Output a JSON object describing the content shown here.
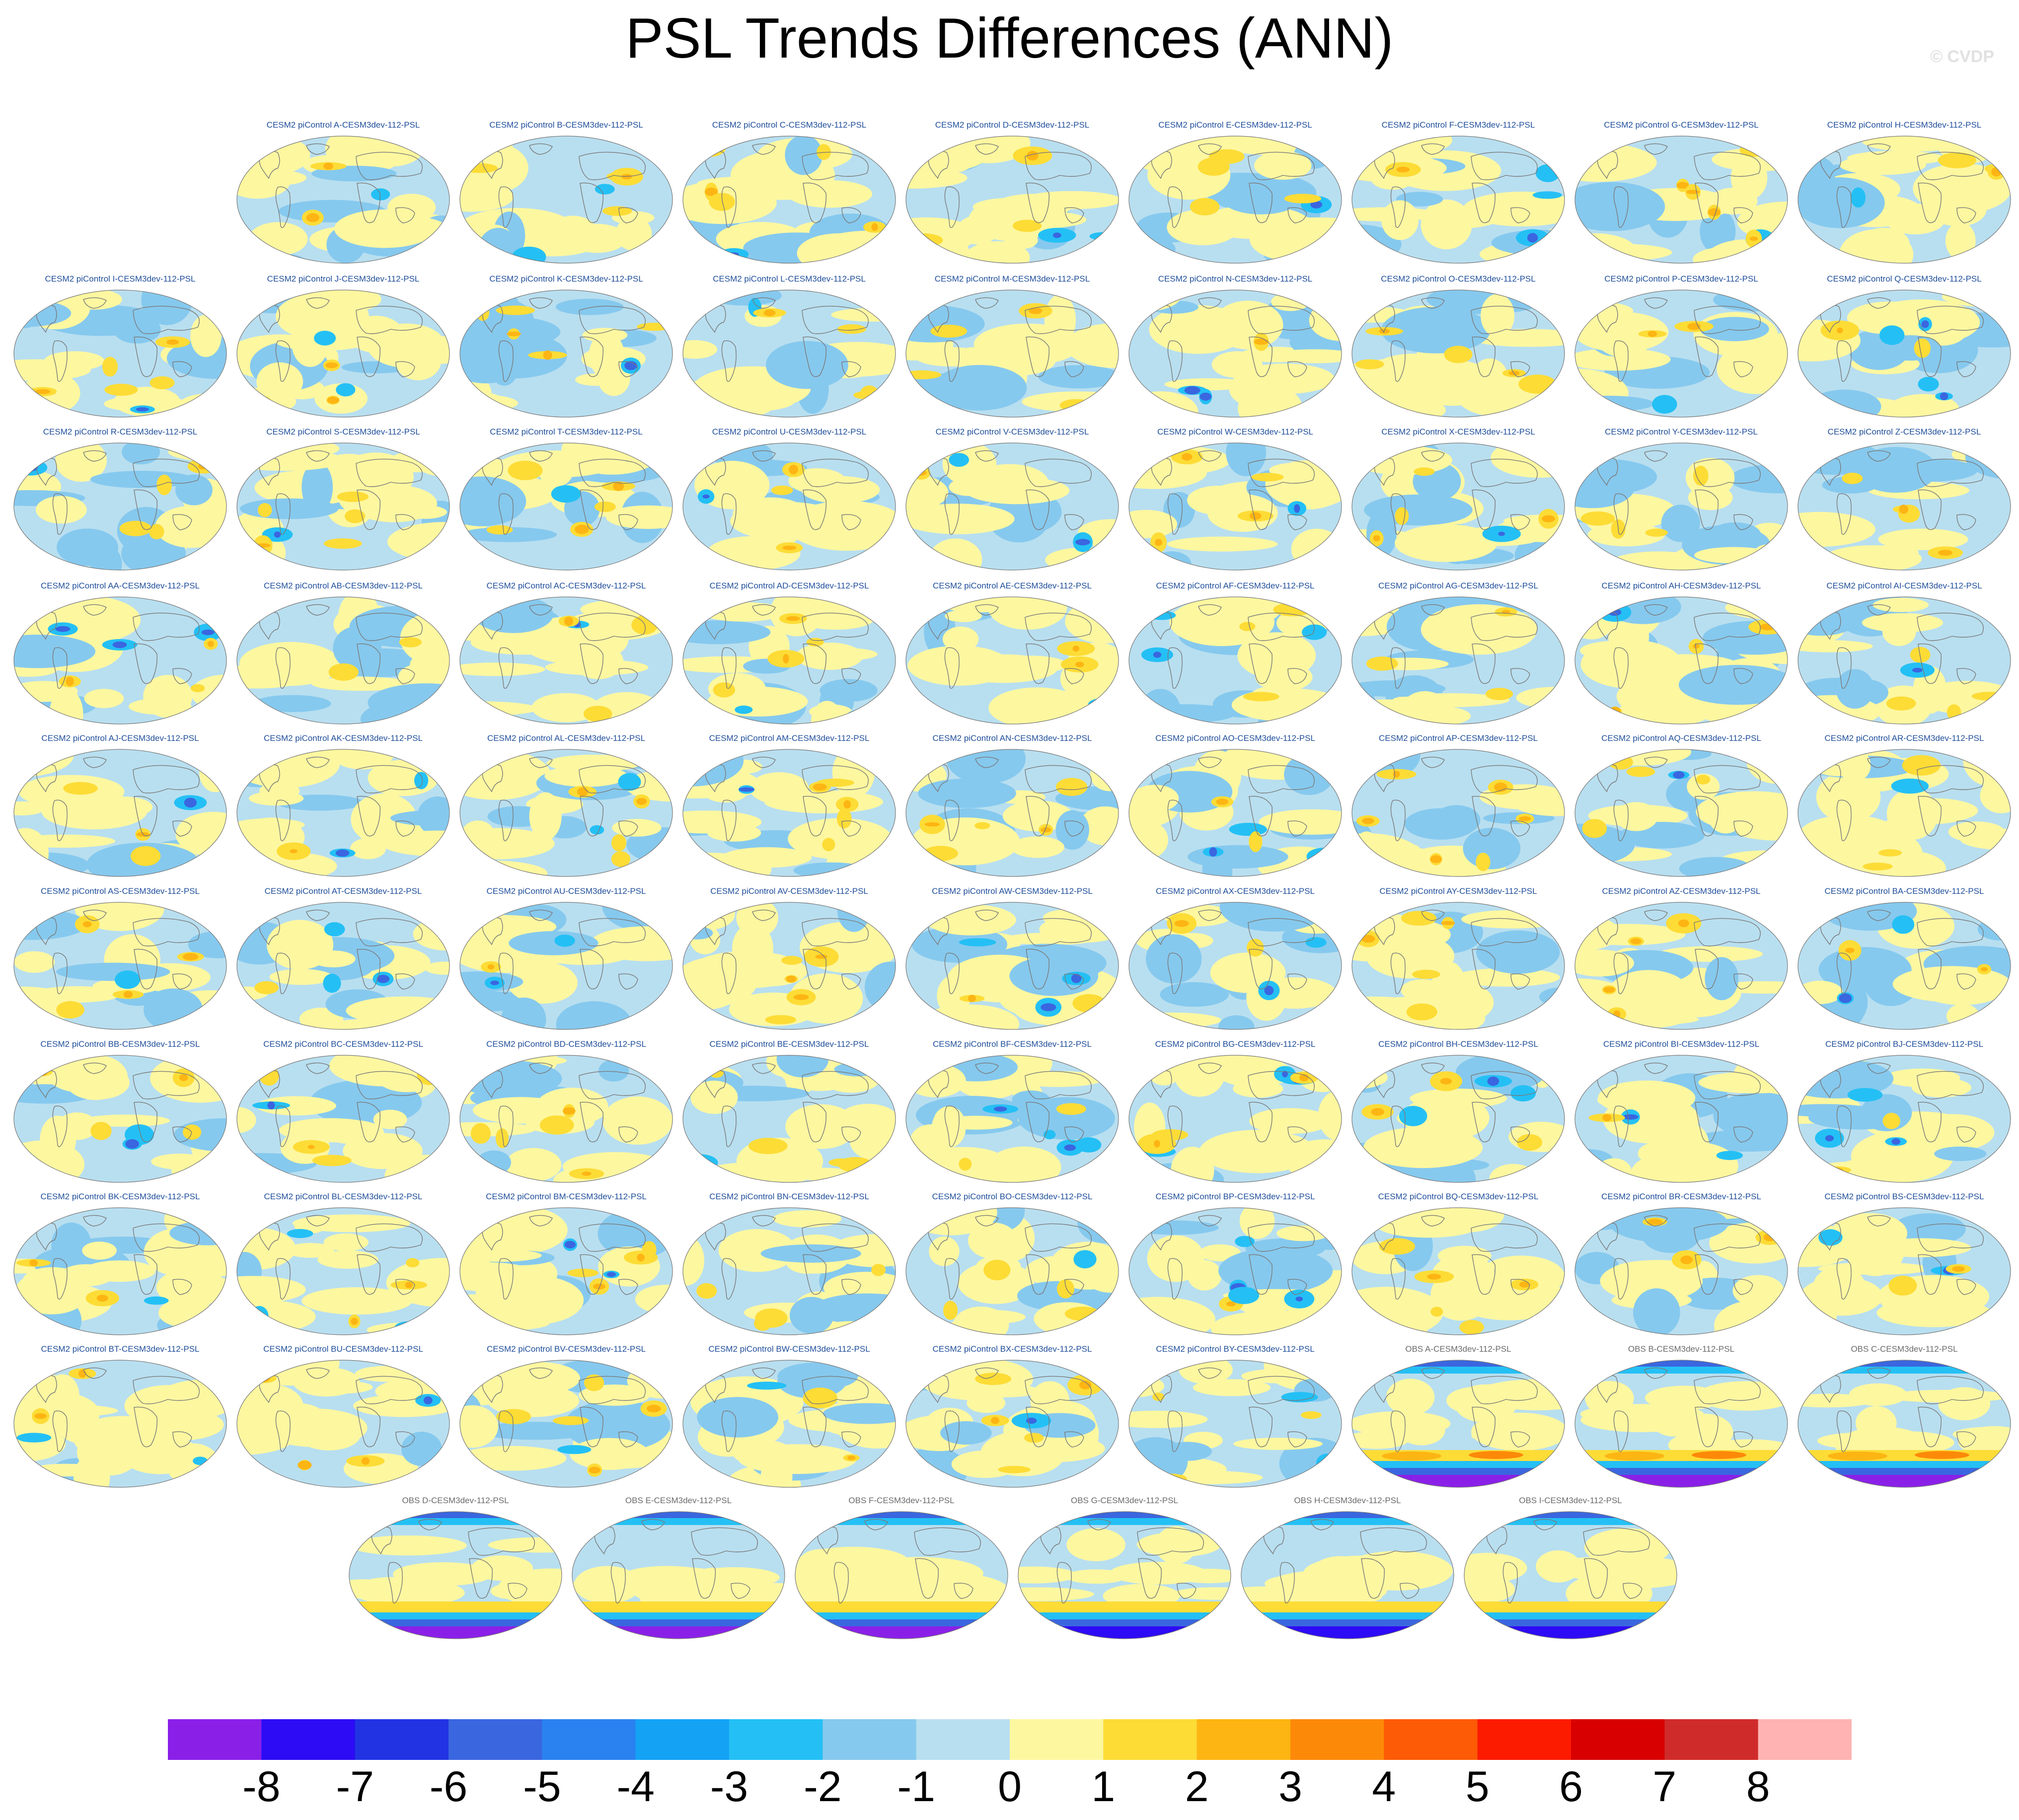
{
  "title": "PSL Trends Differences (ANN)",
  "copyright": "© CVDP",
  "panels": [
    {
      "label": "CESM2 piControl A-CESM3dev-112-PSL",
      "type": "model"
    },
    {
      "label": "CESM2 piControl B-CESM3dev-112-PSL",
      "type": "model"
    },
    {
      "label": "CESM2 piControl C-CESM3dev-112-PSL",
      "type": "model"
    },
    {
      "label": "CESM2 piControl D-CESM3dev-112-PSL",
      "type": "model"
    },
    {
      "label": "CESM2 piControl E-CESM3dev-112-PSL",
      "type": "model"
    },
    {
      "label": "CESM2 piControl F-CESM3dev-112-PSL",
      "type": "model"
    },
    {
      "label": "CESM2 piControl G-CESM3dev-112-PSL",
      "type": "model"
    },
    {
      "label": "CESM2 piControl H-CESM3dev-112-PSL",
      "type": "model"
    },
    {
      "label": "CESM2 piControl I-CESM3dev-112-PSL",
      "type": "model"
    },
    {
      "label": "CESM2 piControl J-CESM3dev-112-PSL",
      "type": "model"
    },
    {
      "label": "CESM2 piControl K-CESM3dev-112-PSL",
      "type": "model"
    },
    {
      "label": "CESM2 piControl L-CESM3dev-112-PSL",
      "type": "model"
    },
    {
      "label": "CESM2 piControl M-CESM3dev-112-PSL",
      "type": "model"
    },
    {
      "label": "CESM2 piControl N-CESM3dev-112-PSL",
      "type": "model"
    },
    {
      "label": "CESM2 piControl O-CESM3dev-112-PSL",
      "type": "model"
    },
    {
      "label": "CESM2 piControl P-CESM3dev-112-PSL",
      "type": "model"
    },
    {
      "label": "CESM2 piControl Q-CESM3dev-112-PSL",
      "type": "model"
    },
    {
      "label": "CESM2 piControl R-CESM3dev-112-PSL",
      "type": "model"
    },
    {
      "label": "CESM2 piControl S-CESM3dev-112-PSL",
      "type": "model"
    },
    {
      "label": "CESM2 piControl T-CESM3dev-112-PSL",
      "type": "model"
    },
    {
      "label": "CESM2 piControl U-CESM3dev-112-PSL",
      "type": "model"
    },
    {
      "label": "CESM2 piControl V-CESM3dev-112-PSL",
      "type": "model"
    },
    {
      "label": "CESM2 piControl W-CESM3dev-112-PSL",
      "type": "model"
    },
    {
      "label": "CESM2 piControl X-CESM3dev-112-PSL",
      "type": "model"
    },
    {
      "label": "CESM2 piControl Y-CESM3dev-112-PSL",
      "type": "model"
    },
    {
      "label": "CESM2 piControl Z-CESM3dev-112-PSL",
      "type": "model"
    },
    {
      "label": "CESM2 piControl AA-CESM3dev-112-PSL",
      "type": "model"
    },
    {
      "label": "CESM2 piControl AB-CESM3dev-112-PSL",
      "type": "model"
    },
    {
      "label": "CESM2 piControl AC-CESM3dev-112-PSL",
      "type": "model"
    },
    {
      "label": "CESM2 piControl AD-CESM3dev-112-PSL",
      "type": "model"
    },
    {
      "label": "CESM2 piControl AE-CESM3dev-112-PSL",
      "type": "model"
    },
    {
      "label": "CESM2 piControl AF-CESM3dev-112-PSL",
      "type": "model"
    },
    {
      "label": "CESM2 piControl AG-CESM3dev-112-PSL",
      "type": "model"
    },
    {
      "label": "CESM2 piControl AH-CESM3dev-112-PSL",
      "type": "model"
    },
    {
      "label": "CESM2 piControl AI-CESM3dev-112-PSL",
      "type": "model"
    },
    {
      "label": "CESM2 piControl AJ-CESM3dev-112-PSL",
      "type": "model"
    },
    {
      "label": "CESM2 piControl AK-CESM3dev-112-PSL",
      "type": "model"
    },
    {
      "label": "CESM2 piControl AL-CESM3dev-112-PSL",
      "type": "model"
    },
    {
      "label": "CESM2 piControl AM-CESM3dev-112-PSL",
      "type": "model"
    },
    {
      "label": "CESM2 piControl AN-CESM3dev-112-PSL",
      "type": "model"
    },
    {
      "label": "CESM2 piControl AO-CESM3dev-112-PSL",
      "type": "model"
    },
    {
      "label": "CESM2 piControl AP-CESM3dev-112-PSL",
      "type": "model"
    },
    {
      "label": "CESM2 piControl AQ-CESM3dev-112-PSL",
      "type": "model"
    },
    {
      "label": "CESM2 piControl AR-CESM3dev-112-PSL",
      "type": "model"
    },
    {
      "label": "CESM2 piControl AS-CESM3dev-112-PSL",
      "type": "model"
    },
    {
      "label": "CESM2 piControl AT-CESM3dev-112-PSL",
      "type": "model"
    },
    {
      "label": "CESM2 piControl AU-CESM3dev-112-PSL",
      "type": "model"
    },
    {
      "label": "CESM2 piControl AV-CESM3dev-112-PSL",
      "type": "model"
    },
    {
      "label": "CESM2 piControl AW-CESM3dev-112-PSL",
      "type": "model"
    },
    {
      "label": "CESM2 piControl AX-CESM3dev-112-PSL",
      "type": "model"
    },
    {
      "label": "CESM2 piControl AY-CESM3dev-112-PSL",
      "type": "model"
    },
    {
      "label": "CESM2 piControl AZ-CESM3dev-112-PSL",
      "type": "model"
    },
    {
      "label": "CESM2 piControl BA-CESM3dev-112-PSL",
      "type": "model"
    },
    {
      "label": "CESM2 piControl BB-CESM3dev-112-PSL",
      "type": "model"
    },
    {
      "label": "CESM2 piControl BC-CESM3dev-112-PSL",
      "type": "model"
    },
    {
      "label": "CESM2 piControl BD-CESM3dev-112-PSL",
      "type": "model"
    },
    {
      "label": "CESM2 piControl BE-CESM3dev-112-PSL",
      "type": "model"
    },
    {
      "label": "CESM2 piControl BF-CESM3dev-112-PSL",
      "type": "model"
    },
    {
      "label": "CESM2 piControl BG-CESM3dev-112-PSL",
      "type": "model"
    },
    {
      "label": "CESM2 piControl BH-CESM3dev-112-PSL",
      "type": "model"
    },
    {
      "label": "CESM2 piControl BI-CESM3dev-112-PSL",
      "type": "model"
    },
    {
      "label": "CESM2 piControl BJ-CESM3dev-112-PSL",
      "type": "model"
    },
    {
      "label": "CESM2 piControl BK-CESM3dev-112-PSL",
      "type": "model"
    },
    {
      "label": "CESM2 piControl BL-CESM3dev-112-PSL",
      "type": "model"
    },
    {
      "label": "CESM2 piControl BM-CESM3dev-112-PSL",
      "type": "model"
    },
    {
      "label": "CESM2 piControl BN-CESM3dev-112-PSL",
      "type": "model"
    },
    {
      "label": "CESM2 piControl BO-CESM3dev-112-PSL",
      "type": "model"
    },
    {
      "label": "CESM2 piControl BP-CESM3dev-112-PSL",
      "type": "model"
    },
    {
      "label": "CESM2 piControl BQ-CESM3dev-112-PSL",
      "type": "model"
    },
    {
      "label": "CESM2 piControl BR-CESM3dev-112-PSL",
      "type": "model"
    },
    {
      "label": "CESM2 piControl BS-CESM3dev-112-PSL",
      "type": "model"
    },
    {
      "label": "CESM2 piControl BT-CESM3dev-112-PSL",
      "type": "model"
    },
    {
      "label": "CESM2 piControl BU-CESM3dev-112-PSL",
      "type": "model"
    },
    {
      "label": "CESM2 piControl BV-CESM3dev-112-PSL",
      "type": "model"
    },
    {
      "label": "CESM2 piControl BW-CESM3dev-112-PSL",
      "type": "model"
    },
    {
      "label": "CESM2 piControl BX-CESM3dev-112-PSL",
      "type": "model"
    },
    {
      "label": "CESM2 piControl BY-CESM3dev-112-PSL",
      "type": "model"
    },
    {
      "label": "OBS A-CESM3dev-112-PSL",
      "type": "obs"
    },
    {
      "label": "OBS B-CESM3dev-112-PSL",
      "type": "obs"
    },
    {
      "label": "OBS C-CESM3dev-112-PSL",
      "type": "obs"
    },
    {
      "label": "OBS D-CESM3dev-112-PSL",
      "type": "obs"
    },
    {
      "label": "OBS E-CESM3dev-112-PSL",
      "type": "obs"
    },
    {
      "label": "OBS F-CESM3dev-112-PSL",
      "type": "obs"
    },
    {
      "label": "OBS G-CESM3dev-112-PSL",
      "type": "obs"
    },
    {
      "label": "OBS H-CESM3dev-112-PSL",
      "type": "obs"
    },
    {
      "label": "OBS I-CESM3dev-112-PSL",
      "type": "obs"
    }
  ],
  "colorbar": {
    "labels": [
      "-8",
      "-7",
      "-6",
      "-5",
      "-4",
      "-3",
      "-2",
      "-1",
      "0",
      "1",
      "2",
      "3",
      "4",
      "5",
      "6",
      "7",
      "8"
    ],
    "colors": [
      "#8a20e8",
      "#2d0bf5",
      "#2133e3",
      "#3a66e0",
      "#2a82f0",
      "#14a2f5",
      "#24c0f5",
      "#86c9ee",
      "#b8dff0",
      "#fdf7a0",
      "#fddc36",
      "#fdb513",
      "#fd8909",
      "#fd5b05",
      "#fd1b00",
      "#d80000",
      "#d02b2b",
      "#ffb3b3"
    ]
  },
  "palette": {
    "ocean_base": "#b8dff0",
    "positive_weak": "#fdf7a0",
    "positive_mid": "#fddc36",
    "positive_strong": "#fdb513",
    "positive_max": "#fd8909",
    "negative_weak": "#86c9ee",
    "negative_mid": "#24c0f5",
    "negative_strong": "#3a66e0",
    "negative_deep": "#2d0bf5",
    "negative_max": "#8a20e8",
    "coastline": "#7a7a7a",
    "model_label": "#1f4e9b",
    "obs_label": "#6b6b6b"
  }
}
